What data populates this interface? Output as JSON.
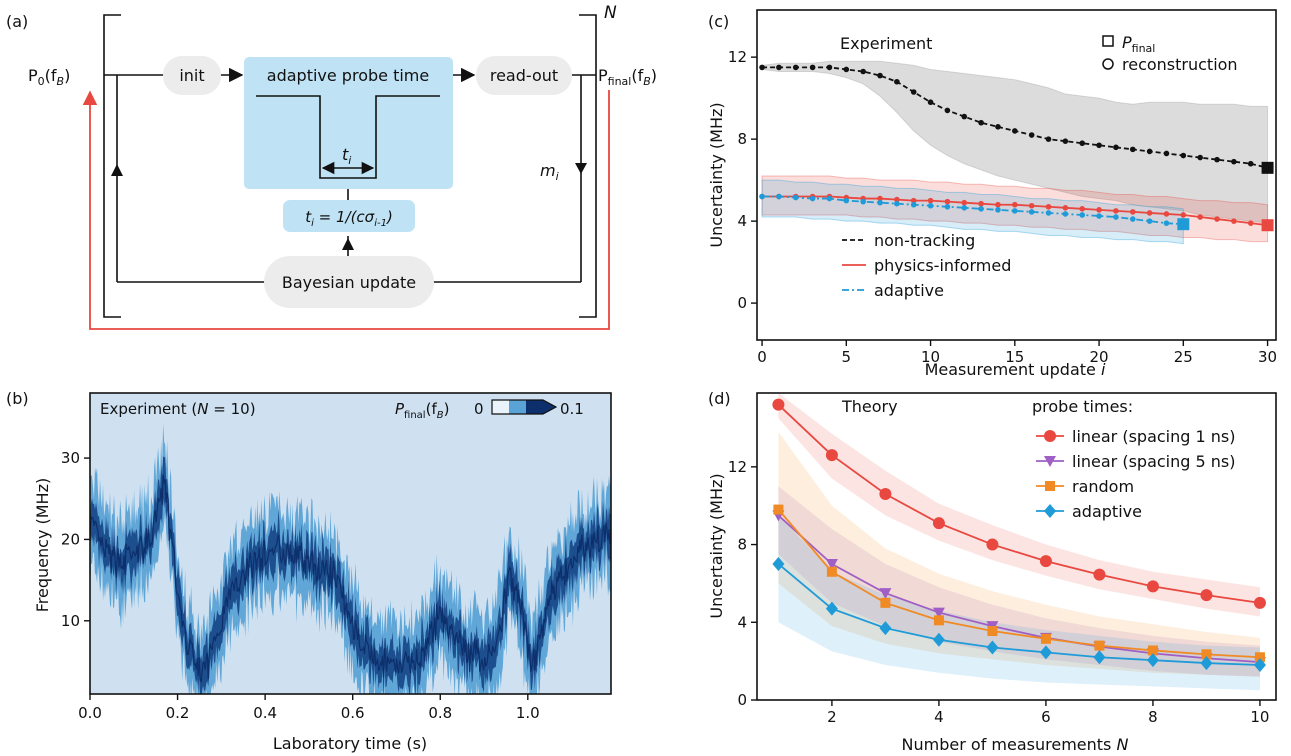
{
  "panels": {
    "a": {
      "label": "(a)"
    },
    "b": {
      "label": "(b)"
    },
    "c": {
      "label": "(c)"
    },
    "d": {
      "label": "(d)"
    }
  },
  "diagram": {
    "p0": "P",
    "p0_sub": "0",
    "p0_arg": "(f",
    "p0_arg_sub": "B",
    "p0_close": ")",
    "pfinal": "P",
    "pfinal_sub": "final",
    "pfinal_arg": "(f",
    "pfinal_arg_sub": "B",
    "pfinal_close": ")",
    "init": "init",
    "adaptive_probe_time": "adaptive probe time",
    "readout": "read-out",
    "ti": "t",
    "ti_sub": "i",
    "mi": "m",
    "mi_sub": "i",
    "N": "N",
    "formula": "t",
    "formula_sub": "i",
    "formula_mid": " = 1/(cσ",
    "formula_sub2": "i-1",
    "formula_end": ")",
    "bayesian_update": "Bayesian update",
    "colors": {
      "box": "#bfe3f5",
      "pill": "#ececec",
      "feedback": "#e8483f"
    }
  },
  "panel_b": {
    "title": "Experiment (",
    "title_N": "N",
    "title_end": " = 10)",
    "colorbar_label": "P",
    "colorbar_label_sub": "final",
    "colorbar_label_arg": "(f",
    "colorbar_label_arg_sub": "B",
    "colorbar_label_close": ")",
    "colorbar_min": "0",
    "colorbar_max": "0.1",
    "xlabel": "Laboratory time (s)",
    "ylabel": "Frequency (MHz)",
    "xticks": [
      "0.0",
      "0.2",
      "0.4",
      "0.6",
      "0.8",
      "1.0"
    ],
    "yticks": [
      "10",
      "20",
      "30"
    ],
    "background": "#cfe1f1",
    "colors": [
      "#eaf3fb",
      "#5aa3d6",
      "#0d2f6b"
    ]
  },
  "chart_data": [
    {
      "panel": "c",
      "type": "line",
      "annotation": "Experiment",
      "xlabel": "Measurement update i",
      "ylabel": "Uncertainty (MHz)",
      "xlim": [
        -0.3,
        30.5
      ],
      "ylim": [
        -1.8,
        14.3
      ],
      "xticks": [
        "0",
        "5",
        "10",
        "15",
        "20",
        "25",
        "30"
      ],
      "yticks": [
        "0",
        "4",
        "8",
        "12"
      ],
      "marker_legend": [
        {
          "label": "P",
          "label_sub": "final",
          "marker": "square"
        },
        {
          "label": "reconstruction",
          "marker": "circle"
        }
      ],
      "series": [
        {
          "name": "non-tracking",
          "color": "#111111",
          "dash": "5,3",
          "x": [
            0,
            1,
            2,
            3,
            4,
            5,
            6,
            7,
            8,
            9,
            10,
            11,
            12,
            13,
            14,
            15,
            16,
            17,
            18,
            19,
            20,
            21,
            22,
            23,
            24,
            25,
            26,
            27,
            28,
            29,
            30
          ],
          "y": [
            11.5,
            11.5,
            11.5,
            11.5,
            11.5,
            11.4,
            11.3,
            11.1,
            10.8,
            10.3,
            9.8,
            9.4,
            9.1,
            8.8,
            8.6,
            8.4,
            8.2,
            8.0,
            7.9,
            7.8,
            7.7,
            7.6,
            7.5,
            7.4,
            7.3,
            7.2,
            7.1,
            7.0,
            6.9,
            6.8,
            6.6
          ],
          "band_low": [
            11.4,
            11.3,
            11.3,
            11.3,
            11.2,
            11.0,
            10.7,
            10.1,
            9.3,
            8.4,
            7.7,
            7.2,
            6.8,
            6.5,
            6.2,
            6.0,
            5.8,
            5.6,
            5.4,
            5.2,
            5.1,
            5.0,
            4.8,
            4.7,
            4.6,
            4.5,
            4.3,
            4.2,
            4.1,
            4.0,
            3.9
          ],
          "band_high": [
            11.6,
            11.7,
            11.7,
            11.7,
            11.8,
            11.8,
            11.8,
            11.8,
            11.7,
            11.6,
            11.4,
            11.3,
            11.2,
            11.1,
            11.0,
            10.9,
            10.7,
            10.5,
            10.2,
            10.1,
            10.0,
            9.8,
            9.7,
            9.8,
            9.8,
            9.8,
            9.7,
            9.7,
            9.7,
            9.6,
            9.6
          ],
          "final_marker": {
            "x": 30,
            "y": 6.6
          }
        },
        {
          "name": "physics-informed",
          "color": "#e8483f",
          "dash": "",
          "x": [
            0,
            1,
            2,
            3,
            4,
            5,
            6,
            7,
            8,
            9,
            10,
            11,
            12,
            13,
            14,
            15,
            16,
            17,
            18,
            19,
            20,
            21,
            22,
            23,
            24,
            25,
            26,
            27,
            28,
            29,
            30
          ],
          "y": [
            5.2,
            5.2,
            5.2,
            5.2,
            5.2,
            5.15,
            5.1,
            5.1,
            5.05,
            5.0,
            5.0,
            4.95,
            4.9,
            4.85,
            4.8,
            4.8,
            4.75,
            4.7,
            4.65,
            4.6,
            4.55,
            4.5,
            4.45,
            4.4,
            4.35,
            4.3,
            4.2,
            4.1,
            4.0,
            3.9,
            3.8
          ],
          "band_low": [
            4.3,
            4.3,
            4.3,
            4.3,
            4.3,
            4.3,
            4.2,
            4.2,
            4.1,
            4.1,
            4.0,
            4.0,
            3.9,
            3.9,
            3.8,
            3.8,
            3.7,
            3.7,
            3.6,
            3.6,
            3.5,
            3.5,
            3.4,
            3.3,
            3.3,
            3.2,
            3.2,
            3.1,
            3.1,
            3.0,
            3.0
          ],
          "band_high": [
            6.2,
            6.2,
            6.2,
            6.2,
            6.2,
            6.1,
            6.1,
            6.0,
            6.0,
            6.0,
            5.9,
            5.9,
            5.8,
            5.8,
            5.7,
            5.7,
            5.6,
            5.6,
            5.5,
            5.5,
            5.4,
            5.3,
            5.3,
            5.2,
            5.2,
            5.1,
            5.0,
            5.0,
            4.9,
            4.9,
            4.8
          ],
          "final_marker": {
            "x": 30,
            "y": 3.8
          }
        },
        {
          "name": "adaptive",
          "color": "#1f9bd8",
          "dash": "7,3,2,3",
          "x": [
            0,
            1,
            2,
            3,
            4,
            5,
            6,
            7,
            8,
            9,
            10,
            11,
            12,
            13,
            14,
            15,
            16,
            17,
            18,
            19,
            20,
            21,
            22,
            23,
            24,
            25
          ],
          "y": [
            5.2,
            5.2,
            5.15,
            5.1,
            5.1,
            5.0,
            4.95,
            4.9,
            4.85,
            4.8,
            4.75,
            4.7,
            4.65,
            4.6,
            4.55,
            4.5,
            4.45,
            4.4,
            4.35,
            4.3,
            4.25,
            4.2,
            4.1,
            4.0,
            3.9,
            3.85
          ],
          "band_low": [
            4.2,
            4.2,
            4.2,
            4.1,
            4.1,
            4.0,
            4.0,
            3.9,
            3.9,
            3.8,
            3.8,
            3.7,
            3.6,
            3.6,
            3.5,
            3.5,
            3.4,
            3.3,
            3.3,
            3.2,
            3.2,
            3.1,
            3.1,
            3.0,
            3.0,
            2.9
          ],
          "band_high": [
            6.0,
            6.0,
            5.9,
            5.9,
            5.8,
            5.8,
            5.7,
            5.7,
            5.6,
            5.6,
            5.5,
            5.4,
            5.4,
            5.3,
            5.3,
            5.2,
            5.1,
            5.1,
            5.0,
            5.0,
            4.9,
            4.8,
            4.8,
            4.7,
            4.7,
            4.6
          ],
          "final_marker": {
            "x": 25,
            "y": 3.85
          }
        }
      ]
    },
    {
      "panel": "d",
      "type": "line",
      "annotation": "Theory",
      "legend_title": "probe times:",
      "xlabel": "Number of measurements N",
      "ylabel": "Uncertainty (MHz)",
      "xlim": [
        0.6,
        10.3
      ],
      "ylim": [
        0,
        15.8
      ],
      "xticks": [
        "2",
        "4",
        "6",
        "8",
        "10"
      ],
      "yticks": [
        "0",
        "4",
        "8",
        "12"
      ],
      "series": [
        {
          "name": "linear (spacing 1 ns)",
          "color": "#e8483f",
          "marker": "circle",
          "x": [
            1,
            2,
            3,
            4,
            5,
            6,
            7,
            8,
            9,
            10
          ],
          "y": [
            15.2,
            12.6,
            10.6,
            9.1,
            8.0,
            7.15,
            6.45,
            5.85,
            5.4,
            5.0
          ],
          "band_low": [
            14.5,
            11.4,
            9.5,
            8.2,
            7.2,
            6.4,
            5.7,
            5.2,
            4.7,
            4.3
          ],
          "band_high": [
            15.8,
            13.7,
            11.8,
            10.1,
            9.0,
            8.0,
            7.2,
            6.6,
            6.2,
            5.8
          ]
        },
        {
          "name": "linear (spacing 5 ns)",
          "color": "#a05fc4",
          "marker": "triangle-down",
          "x": [
            1,
            2,
            3,
            4,
            5,
            6,
            7,
            8,
            9,
            10
          ],
          "y": [
            9.5,
            7.0,
            5.5,
            4.5,
            3.8,
            3.2,
            2.75,
            2.4,
            2.15,
            1.95
          ],
          "band_low": [
            7.5,
            5.0,
            3.8,
            3.0,
            2.5,
            2.1,
            1.8,
            1.5,
            1.3,
            1.2
          ],
          "band_high": [
            11.0,
            8.8,
            7.0,
            5.8,
            4.9,
            4.2,
            3.7,
            3.3,
            3.0,
            2.8
          ]
        },
        {
          "name": "random",
          "color": "#f08a24",
          "marker": "square",
          "x": [
            1,
            2,
            3,
            4,
            5,
            6,
            7,
            8,
            9,
            10
          ],
          "y": [
            9.8,
            6.6,
            5.0,
            4.1,
            3.55,
            3.15,
            2.8,
            2.55,
            2.35,
            2.2
          ],
          "band_low": [
            6.0,
            3.8,
            2.9,
            2.4,
            2.1,
            1.8,
            1.6,
            1.4,
            1.3,
            1.2
          ],
          "band_high": [
            13.8,
            10.0,
            7.8,
            6.5,
            5.6,
            4.9,
            4.3,
            3.9,
            3.5,
            3.2
          ]
        },
        {
          "name": "adaptive",
          "color": "#1f9bd8",
          "marker": "diamond",
          "x": [
            1,
            2,
            3,
            4,
            5,
            6,
            7,
            8,
            9,
            10
          ],
          "y": [
            7.0,
            4.7,
            3.7,
            3.1,
            2.7,
            2.45,
            2.2,
            2.05,
            1.9,
            1.8
          ],
          "band_low": [
            4.0,
            2.5,
            1.8,
            1.4,
            1.1,
            0.9,
            0.8,
            0.7,
            0.6,
            0.5
          ],
          "band_high": [
            9.5,
            6.6,
            5.4,
            4.6,
            4.0,
            3.6,
            3.3,
            3.0,
            2.8,
            2.7
          ]
        }
      ]
    }
  ]
}
